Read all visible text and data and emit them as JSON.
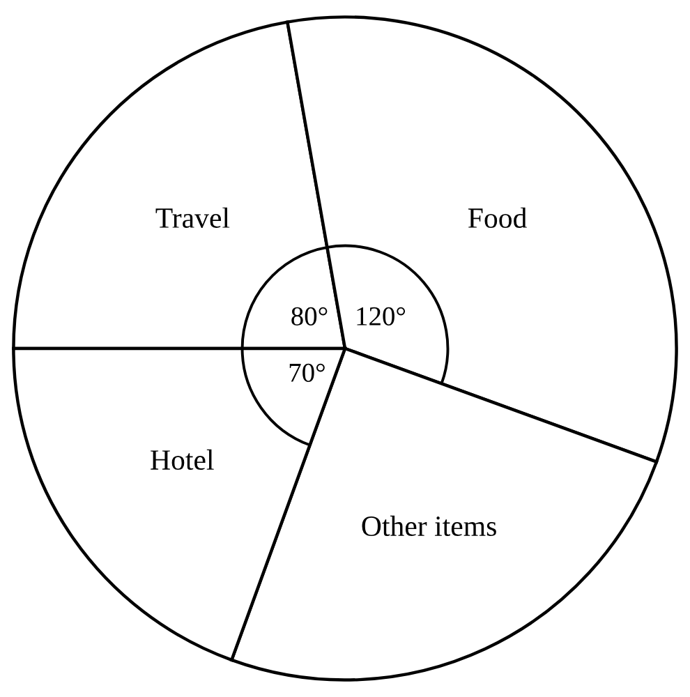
{
  "chart_data": {
    "type": "pie",
    "categories": [
      "Travel",
      "Food",
      "Other items",
      "Hotel"
    ],
    "values": [
      80,
      120,
      90,
      70
    ],
    "colors": [
      "#ffffff",
      "#ffffff",
      "#ffffff",
      "#ffffff"
    ],
    "value_labels": [
      "80°",
      "120°",
      null,
      "70°"
    ]
  }
}
